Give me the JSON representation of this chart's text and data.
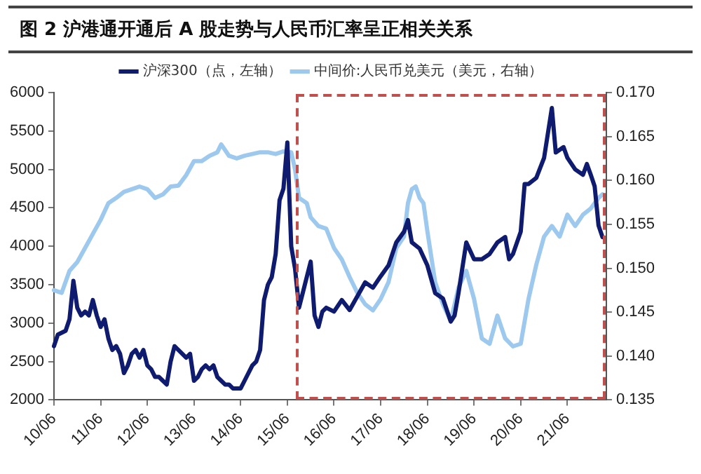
{
  "chart_data": {
    "type": "line",
    "title": "图 2 沪港通开通后 A 股走势与人民币汇率呈正相关关系",
    "categories": [
      "10/06",
      null,
      null,
      null,
      null,
      null,
      null,
      null,
      null,
      null,
      null,
      null,
      "11/06",
      null,
      null,
      null,
      null,
      null,
      null,
      null,
      null,
      null,
      null,
      null,
      "12/06",
      null,
      null,
      null,
      null,
      null,
      null,
      null,
      null,
      null,
      null,
      null,
      "13/06",
      null,
      null,
      null,
      null,
      null,
      null,
      null,
      null,
      null,
      null,
      null,
      "14/06",
      null,
      null,
      null,
      null,
      null,
      null,
      null,
      null,
      null,
      null,
      null,
      "15/06",
      null,
      null,
      null,
      null,
      null,
      null,
      null,
      null,
      null,
      null,
      null,
      "16/06",
      null,
      null,
      null,
      null,
      null,
      null,
      null,
      null,
      null,
      null,
      null,
      "17/06",
      null,
      null,
      null,
      null,
      null,
      null,
      null,
      null,
      null,
      null,
      null,
      "18/06",
      null,
      null,
      null,
      null,
      null,
      null,
      null,
      null,
      null,
      null,
      null,
      "19/06",
      null,
      null,
      null,
      null,
      null,
      null,
      null,
      null,
      null,
      null,
      null,
      "20/06",
      null,
      null,
      null,
      null,
      null,
      null,
      null,
      null,
      null,
      null,
      null,
      "21/06",
      null,
      null,
      null,
      null,
      null,
      null,
      null,
      null,
      null,
      null
    ],
    "series": [
      {
        "name": "沪深300（点，左轴）",
        "color": "#0f1b6e",
        "values": [
          2700,
          2850,
          null,
          2900,
          3050,
          3550,
          3200,
          3100,
          3150,
          3100,
          3300,
          3100,
          2950,
          3050,
          2800,
          2650,
          2700,
          2600,
          2350,
          2450,
          2600,
          2650,
          2550,
          2650,
          2450,
          2400,
          2300,
          2300,
          2250,
          2200,
          2500,
          2700,
          2650,
          2600,
          2550,
          2600,
          2250,
          2300,
          2400,
          2450,
          2400,
          2450,
          2300,
          2250,
          2200,
          2200,
          2150,
          null,
          2150,
          2250,
          null,
          2450,
          2500,
          2650,
          3300,
          3500,
          3600,
          3900,
          4600,
          4750,
          5350,
          4000,
          3700,
          3200,
          3400,
          3600,
          3800,
          3100,
          2950,
          3150,
          3200,
          null,
          3150,
          null,
          3300,
          null,
          3170,
          null,
          3350,
          null,
          3530,
          null,
          3460,
          null,
          3610,
          null,
          3750,
          null,
          4050,
          null,
          4190,
          4340,
          4050,
          null,
          3970,
          null,
          3750,
          null,
          3390,
          null,
          3320,
          null,
          3020,
          3100,
          3390,
          null,
          4050,
          null,
          3830,
          null,
          3830,
          null,
          3900,
          null,
          4050,
          null,
          4120,
          3830,
          3900,
          null,
          4190,
          4810,
          4810,
          null,
          4890,
          null,
          5150,
          null,
          5800,
          5220,
          null,
          5290,
          5150,
          null,
          5000,
          null,
          4930,
          5070,
          4930,
          4780,
          4270,
          4120,
          null
        ]
      },
      {
        "name": "中间价:人民币兑美元（美元，右轴）",
        "color": "#9ec9ee",
        "axis": "y2",
        "values": [
          0.1475,
          null,
          0.1472,
          null,
          0.1497,
          null,
          0.1507,
          null,
          0.1523,
          null,
          0.1539,
          null,
          0.1555,
          null,
          0.1574,
          null,
          0.158,
          null,
          0.1587,
          null,
          0.159,
          null,
          0.1593,
          null,
          0.159,
          null,
          0.158,
          null,
          0.1584,
          null,
          0.1593,
          null,
          0.1594,
          null,
          0.1606,
          null,
          0.1622,
          null,
          0.1622,
          null,
          0.1628,
          null,
          0.1632,
          0.1641,
          null,
          0.1628,
          null,
          0.1625,
          null,
          0.1628,
          null,
          0.163,
          null,
          0.1632,
          null,
          0.1632,
          null,
          0.163,
          null,
          0.1633,
          null,
          0.1632,
          0.1612,
          0.158,
          null,
          0.1574,
          0.1558,
          null,
          0.1548,
          null,
          0.1545,
          null,
          0.1523,
          null,
          0.151,
          null,
          0.149,
          null,
          0.1472,
          null,
          0.1459,
          null,
          0.1452,
          null,
          0.1465,
          null,
          0.1484,
          null,
          0.1523,
          null,
          0.1536,
          0.1574,
          0.159,
          0.1593,
          0.158,
          0.1574,
          0.1542,
          null,
          0.1484,
          null,
          0.1459,
          null,
          0.144,
          null,
          0.1478,
          null,
          0.1497,
          null,
          0.1465,
          null,
          0.142,
          null,
          0.1414,
          null,
          0.1446,
          null,
          0.142,
          null,
          0.1411,
          null,
          0.1414,
          null,
          0.1465,
          null,
          0.1504,
          null,
          0.1536,
          null,
          0.1548,
          null,
          0.1536,
          null,
          0.1561,
          null,
          0.1548,
          null,
          0.1561,
          null,
          0.1568,
          null,
          0.158,
          0.1584,
          null
        ]
      }
    ],
    "ylim": [
      2000,
      6000
    ],
    "yticks": [
      2000,
      2500,
      3000,
      3500,
      4000,
      4500,
      5000,
      5500,
      6000
    ],
    "y2lim": [
      0.135,
      0.17
    ],
    "y2ticks": [
      {
        "value": 0.135,
        "label": "0.135"
      },
      {
        "value": 0.14,
        "label": "0.140"
      },
      {
        "value": 0.145,
        "label": "0.145"
      },
      {
        "value": 0.15,
        "label": "0.150"
      },
      {
        "value": 0.155,
        "label": "0.155"
      },
      {
        "value": 0.16,
        "label": "0.160"
      },
      {
        "value": 0.165,
        "label": "0.165"
      },
      {
        "value": 0.17,
        "label": "0.170"
      }
    ],
    "legend": "top",
    "grid": false,
    "marker": "none",
    "line_style": "solid"
  }
}
